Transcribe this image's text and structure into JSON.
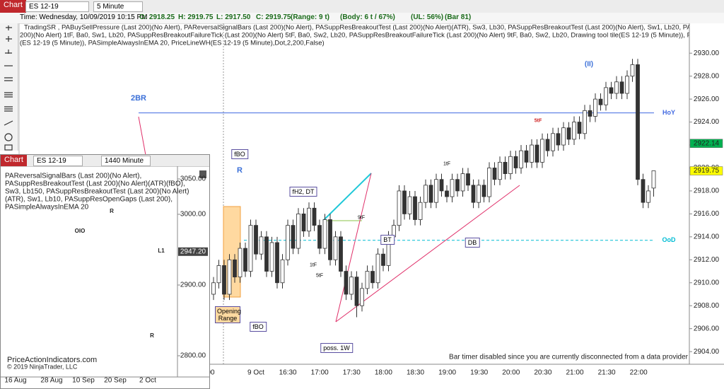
{
  "header": {
    "button": "Chart",
    "instrument": "ES 12-19",
    "interval": "5 Minute"
  },
  "info": [
    "Time: Wednesday, 10/09/2019 10:15 PM",
    "O: 2918.25",
    "H: 2919.75",
    "L: 2917.50",
    "C: 2919.75",
    "(Range: 9 t)",
    "(Body: 6 t / 67%)",
    "(UL: 56%)",
    "(Bar 81)"
  ],
  "chart_data": {
    "type": "candlestick",
    "indicators": [
      "TradingSR , PABuySellPressure (Last 200)(No Alert), PAReversalSignalBars (Last 200)(No Alert), PASuppResBreakoutTest (Last 200)(No Alert)(ATR), Sw3, Lb30, PASuppResBreakoutTest (Last 200)(No Alert), Sw1, Lb20, PASuppResBreakoutFailureTick",
      "200)(No Alert) 1tF, Ba0, Sw1, Lb20, PASuppResBreakoutFailureTick (Last 200)(No Alert) 5tF, Ba0, Sw2, Lb20, PASuppResBreakoutFailureTick (Last 200)(No Alert) 9tF, Ba0, Sw2, Lb20, Drawing tool tile(ES 12-19 (5 Minute)), PAShowBidAsk, Bar",
      "(ES 12-19 (5 Minute)), PASimpleAlwaysInEMA    20, PriceLineWH(ES 12-19 (5 Minute),Dot,2,200,False)"
    ],
    "candles": [
      [
        2909,
        2910.5,
        2908.5,
        2910
      ],
      [
        2910,
        2912,
        2909.5,
        2911.5
      ],
      [
        2911.5,
        2912,
        2908.5,
        2909
      ],
      [
        2909,
        2912.5,
        2908.5,
        2912
      ],
      [
        2912,
        2912.5,
        2910,
        2910.5
      ],
      [
        2910.5,
        2913.5,
        2910,
        2913
      ],
      [
        2913,
        2913.5,
        2910.5,
        2911
      ],
      [
        2911,
        2915.5,
        2910.5,
        2915
      ],
      [
        2915,
        2915.5,
        2912,
        2912.5
      ],
      [
        2912.5,
        2914.5,
        2912,
        2914
      ],
      [
        2914,
        2914.5,
        2910.5,
        2911
      ],
      [
        2911,
        2914,
        2910.5,
        2913.5
      ],
      [
        2913.5,
        2914,
        2909.5,
        2910
      ],
      [
        2910,
        2912.5,
        2909.5,
        2912
      ],
      [
        2912,
        2915.5,
        2911.5,
        2915
      ],
      [
        2915,
        2915.5,
        2912.5,
        2913
      ],
      [
        2913,
        2916.5,
        2912.5,
        2916
      ],
      [
        2916,
        2916.5,
        2914,
        2914.5
      ],
      [
        2914.5,
        2917,
        2914,
        2916.5
      ],
      [
        2916.5,
        2917,
        2914.5,
        2915
      ],
      [
        2915,
        2915.5,
        2912.5,
        2913
      ],
      [
        2913,
        2916,
        2912.5,
        2915.5
      ],
      [
        2915.5,
        2916,
        2911.5,
        2912
      ],
      [
        2912,
        2914.5,
        2911.5,
        2914
      ],
      [
        2914,
        2914.5,
        2910.5,
        2911
      ],
      [
        2911,
        2911.5,
        2908.5,
        2909
      ],
      [
        2909,
        2911,
        2908.5,
        2910.5
      ],
      [
        2910.5,
        2911,
        2907,
        2908
      ],
      [
        2908,
        2910,
        2907.5,
        2909.5
      ],
      [
        2909.5,
        2911.5,
        2909,
        2911
      ],
      [
        2911,
        2911.5,
        2909.5,
        2910
      ],
      [
        2910,
        2913,
        2909.5,
        2912.5
      ],
      [
        2912.5,
        2913,
        2911,
        2911.5
      ],
      [
        2911.5,
        2914.5,
        2911,
        2914
      ],
      [
        2914,
        2915.5,
        2913.5,
        2915
      ],
      [
        2915,
        2918.5,
        2914.5,
        2918
      ],
      [
        2918,
        2918.5,
        2915.5,
        2916
      ],
      [
        2916,
        2918,
        2915.5,
        2917.5
      ],
      [
        2917.5,
        2918,
        2915,
        2915.5
      ],
      [
        2915.5,
        2917.5,
        2915,
        2917
      ],
      [
        2917,
        2919,
        2916.5,
        2918.5
      ],
      [
        2918.5,
        2919,
        2916.5,
        2917
      ],
      [
        2917,
        2919.5,
        2916.5,
        2919
      ],
      [
        2919,
        2919.5,
        2917.5,
        2918
      ],
      [
        2918,
        2918.5,
        2917,
        2917.5
      ],
      [
        2917.5,
        2919.5,
        2917,
        2919
      ],
      [
        2919,
        2919.5,
        2917.5,
        2918
      ],
      [
        2918,
        2920,
        2917.5,
        2919.5
      ],
      [
        2919.5,
        2920,
        2918,
        2918.5
      ],
      [
        2918.5,
        2919,
        2916.5,
        2917
      ],
      [
        2917,
        2919,
        2916.5,
        2918.5
      ],
      [
        2918.5,
        2919,
        2917,
        2917.5
      ],
      [
        2917.5,
        2920.5,
        2917,
        2920
      ],
      [
        2920,
        2920.5,
        2918.5,
        2919
      ],
      [
        2919,
        2921,
        2918.5,
        2920.5
      ],
      [
        2920.5,
        2921,
        2919,
        2919.5
      ],
      [
        2919.5,
        2921.5,
        2919,
        2921
      ],
      [
        2921,
        2921.5,
        2919.5,
        2920
      ],
      [
        2920,
        2922,
        2919.5,
        2921.5
      ],
      [
        2921.5,
        2922,
        2920,
        2920.5
      ],
      [
        2920.5,
        2922.5,
        2920,
        2922
      ],
      [
        2922,
        2922.5,
        2920,
        2920.5
      ],
      [
        2920.5,
        2923,
        2920,
        2922.5
      ],
      [
        2922.5,
        2923,
        2921,
        2921.5
      ],
      [
        2921.5,
        2923.5,
        2921,
        2923
      ],
      [
        2923,
        2923.5,
        2921.5,
        2922
      ],
      [
        2922,
        2924,
        2921.5,
        2923.5
      ],
      [
        2923.5,
        2924,
        2922,
        2922.5
      ],
      [
        2922.5,
        2924.5,
        2922,
        2924
      ],
      [
        2924,
        2924.5,
        2922.5,
        2923
      ],
      [
        2923,
        2925.5,
        2922.5,
        2925
      ],
      [
        2925,
        2925.5,
        2924,
        2924.5
      ],
      [
        2924.5,
        2926.5,
        2924,
        2926
      ],
      [
        2926,
        2926.5,
        2925,
        2925.5
      ],
      [
        2925.5,
        2927.5,
        2925,
        2927
      ],
      [
        2927,
        2927.5,
        2926,
        2926.5
      ],
      [
        2926.5,
        2928,
        2926,
        2927.5
      ],
      [
        2927.5,
        2928,
        2926,
        2926.5
      ],
      [
        2926.5,
        2928.5,
        2926,
        2928
      ],
      [
        2928,
        2929.5,
        2927.5,
        2929
      ],
      [
        2929,
        2929.5,
        2918.5,
        2919
      ],
      [
        2919,
        2919.5,
        2916.5,
        2917
      ],
      [
        2917,
        2918.5,
        2916.5,
        2918
      ],
      [
        2918.25,
        2919.75,
        2917.5,
        2919.75
      ]
    ],
    "ylim": [
      2902.9,
      2932.6
    ],
    "yticks": [
      {
        "value": 2904,
        "label": "2904.00"
      },
      {
        "value": 2906,
        "label": "2906.00"
      },
      {
        "value": 2908,
        "label": "2908.00"
      },
      {
        "value": 2910,
        "label": "2910.00"
      },
      {
        "value": 2912,
        "label": "2912.00"
      },
      {
        "value": 2914,
        "label": "2914.00"
      },
      {
        "value": 2916,
        "label": "2916.00"
      },
      {
        "value": 2918,
        "label": "2918.00"
      },
      {
        "value": 2920,
        "label": "2920.00"
      },
      {
        "value": 2922,
        "label": "2922.00"
      },
      {
        "value": 2924,
        "label": "2924.00"
      },
      {
        "value": 2926,
        "label": "2926.00"
      },
      {
        "value": 2928,
        "label": "2928.00"
      },
      {
        "value": 2930,
        "label": "2930.00"
      }
    ],
    "price_markers": [
      {
        "value": 2922.14,
        "label": "2922.14",
        "color": "#00b050"
      },
      {
        "value": 2919.75,
        "label": "2919.75",
        "color": "#ffff00"
      }
    ],
    "levels": [
      {
        "label": "HoY",
        "value": 2924.8,
        "color": "#4169e1"
      },
      {
        "label": "OoD",
        "value": 2913.7,
        "color": "#00bcd4"
      }
    ],
    "x_labels": [
      "00",
      "9 Oct",
      "16:30",
      "17:00",
      "17:30",
      "18:00",
      "18:30",
      "19:00",
      "19:30",
      "20:00",
      "20:30",
      "21:00",
      "21:30",
      "22:00"
    ],
    "annotations": [
      "2BR",
      "fBO",
      "R",
      "fH2, DT",
      "Opening Range",
      "fBO",
      "BT",
      "DB",
      "poss. 1W",
      "(II)",
      "5tF",
      "1tF",
      "9tF",
      "1tF",
      "5tF"
    ],
    "footer": "Bar timer disabled since you are currently disconnected from a data provider"
  },
  "inset": {
    "button": "Chart",
    "instrument": "ES 12-19",
    "interval": "1440 Minute",
    "indicators": [
      "PAReversalSignalBars (Last 200)(No Alert),",
      "PASuppResBreakoutTest (Last 200)(No Alert)(ATR)(fBO),",
      "Sw3, Lb150, PASuppResBreakoutTest (Last 200)(No Alert)",
      "(ATR), Sw1, Lb10, PASuppResOpenGaps (Last 200),",
      "PASimpleAlwaysInEMA    20"
    ],
    "ylim": [
      2788,
      3068
    ],
    "yticks": [
      {
        "value": 2800,
        "label": "2800.00"
      },
      {
        "value": 2900,
        "label": "2900.00"
      },
      {
        "value": 3000,
        "label": "3000.00"
      },
      {
        "value": 3050,
        "label": "3050.00"
      }
    ],
    "price_marker": {
      "value": 2947.2,
      "label": "2947.20"
    },
    "x_labels": [
      "16 Aug",
      "28 Aug",
      "10 Sep",
      "20 Sep",
      "2 Oct"
    ],
    "annotations": [
      "R",
      "OIO",
      "L1",
      "R"
    ],
    "footer": [
      "PriceActionIndicators.com",
      "© 2019 NinjaTrader, LLC"
    ]
  }
}
